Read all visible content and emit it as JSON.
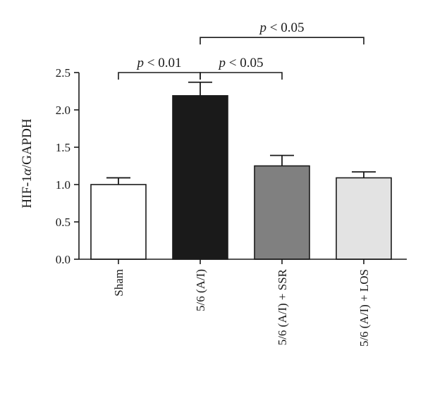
{
  "chart_data": {
    "type": "bar",
    "categories": [
      "Sham",
      "5/6 (A/I)",
      "5/6 (A/I) + SSR",
      "5/6 (A/I) + LOS"
    ],
    "values": [
      1.0,
      2.19,
      1.25,
      1.09
    ],
    "errors": [
      0.09,
      0.18,
      0.14,
      0.08
    ],
    "colors": [
      "#ffffff",
      "#1a1a1a",
      "#808080",
      "#e3e3e3"
    ],
    "ylabel_prefix": "HIF-1",
    "ylabel_greek": "α",
    "ylabel_suffix": "/GAPDH",
    "ylim": [
      0,
      2.5
    ],
    "yticks": [
      0.0,
      0.5,
      1.0,
      1.5,
      2.0,
      2.5
    ],
    "ytick_labels": [
      "0.0",
      "0.5",
      "1.0",
      "1.5",
      "2.0",
      "2.5"
    ],
    "grid": false,
    "significance": [
      {
        "from": 0,
        "to": 1,
        "level": 2.5,
        "label": "p < 0.01"
      },
      {
        "from": 1,
        "to": 2,
        "level": 2.5,
        "label": "p < 0.05"
      },
      {
        "from": 1,
        "to": 3,
        "level": 2.97,
        "label": "p < 0.05"
      }
    ]
  }
}
